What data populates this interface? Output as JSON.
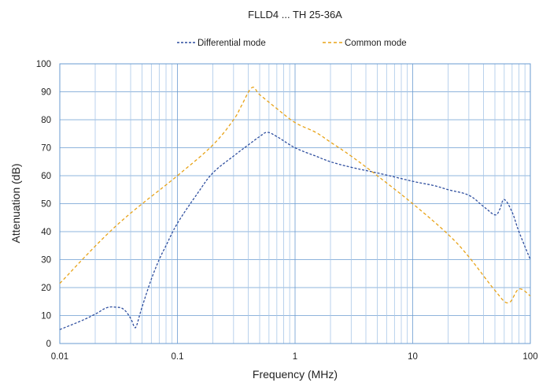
{
  "chart_data": {
    "type": "line",
    "title": "FLLD4 ... TH   25-36A",
    "xlabel": "Frequency (MHz)",
    "ylabel": "Attenuation (dB)",
    "xscale": "log",
    "xlim": [
      0.01,
      100
    ],
    "ylim": [
      0,
      100
    ],
    "x_tick_labels": [
      "0.01",
      "0.1",
      "1",
      "10",
      "100"
    ],
    "y_ticks": [
      0,
      10,
      20,
      30,
      40,
      50,
      60,
      70,
      80,
      90,
      100
    ],
    "y_tick_labels": [
      "0",
      "10",
      "20",
      "30",
      "40",
      "50",
      "60",
      "70",
      "80",
      "90",
      "100"
    ],
    "grid": true,
    "legend_position": "top",
    "series": [
      {
        "name": "Differential mode",
        "color": "#2f4f9f",
        "line_style": "dashed",
        "points": [
          [
            0.01,
            5
          ],
          [
            0.015,
            8
          ],
          [
            0.02,
            10.5
          ],
          [
            0.025,
            12.8
          ],
          [
            0.03,
            13
          ],
          [
            0.035,
            12.2
          ],
          [
            0.04,
            9
          ],
          [
            0.043,
            6
          ],
          [
            0.045,
            6.5
          ],
          [
            0.05,
            13
          ],
          [
            0.06,
            23
          ],
          [
            0.07,
            30
          ],
          [
            0.08,
            35
          ],
          [
            0.1,
            43
          ],
          [
            0.15,
            54
          ],
          [
            0.2,
            61
          ],
          [
            0.3,
            67
          ],
          [
            0.4,
            71
          ],
          [
            0.5,
            74
          ],
          [
            0.58,
            75.5
          ],
          [
            0.7,
            74
          ],
          [
            1,
            70
          ],
          [
            1.5,
            67
          ],
          [
            2,
            65
          ],
          [
            3,
            63
          ],
          [
            5,
            61
          ],
          [
            10,
            58
          ],
          [
            15,
            56.5
          ],
          [
            20,
            55
          ],
          [
            30,
            53
          ],
          [
            40,
            49
          ],
          [
            50,
            46
          ],
          [
            55,
            48
          ],
          [
            60,
            51.5
          ],
          [
            70,
            47
          ],
          [
            80,
            40
          ],
          [
            100,
            30
          ]
        ]
      },
      {
        "name": "Common mode",
        "color": "#e8a317",
        "line_style": "dashed",
        "points": [
          [
            0.01,
            21.5
          ],
          [
            0.03,
            42
          ],
          [
            0.1,
            60
          ],
          [
            0.2,
            71
          ],
          [
            0.3,
            80
          ],
          [
            0.35,
            85
          ],
          [
            0.43,
            91.5
          ],
          [
            0.5,
            89
          ],
          [
            0.7,
            84
          ],
          [
            1,
            79
          ],
          [
            1.5,
            75.5
          ],
          [
            2,
            72
          ],
          [
            3,
            67
          ],
          [
            5,
            60
          ],
          [
            10,
            50
          ],
          [
            20,
            39
          ],
          [
            30,
            31
          ],
          [
            50,
            19
          ],
          [
            65,
            14.5
          ],
          [
            80,
            19.5
          ],
          [
            100,
            17
          ]
        ]
      }
    ]
  }
}
